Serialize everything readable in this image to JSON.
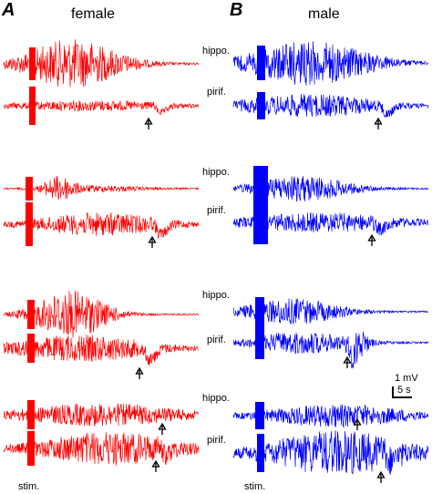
{
  "panels": [
    {
      "letter": "A",
      "title": "female",
      "color": "#ff0000",
      "stim_label": "stim.",
      "pairs": [
        {
          "rows": [
            {
              "label": ""
            },
            {
              "label": ""
            }
          ]
        },
        {
          "rows": [
            {
              "label": ""
            },
            {
              "label": ""
            }
          ]
        },
        {
          "rows": [
            {
              "label": ""
            },
            {
              "label": ""
            }
          ]
        },
        {
          "rows": [
            {
              "label": ""
            },
            {
              "label": ""
            }
          ]
        }
      ]
    },
    {
      "letter": "B",
      "title": "male",
      "color": "#0000ff",
      "stim_label": "stim.",
      "pairs": [
        {
          "rows": [
            {
              "label": "hippo."
            },
            {
              "label": "pirif."
            }
          ]
        },
        {
          "rows": [
            {
              "label": "hippo."
            },
            {
              "label": "pirif."
            }
          ]
        },
        {
          "rows": [
            {
              "label": "hippo."
            },
            {
              "label": "pirif."
            }
          ]
        },
        {
          "rows": [
            {
              "label": "hippo."
            },
            {
              "label": "pirif."
            }
          ]
        }
      ]
    }
  ],
  "scale_bar": {
    "voltage": "1 mV",
    "time": "5 s"
  },
  "colors": {
    "female": "#ff0000",
    "male": "#0000ff",
    "text": "#000000"
  }
}
